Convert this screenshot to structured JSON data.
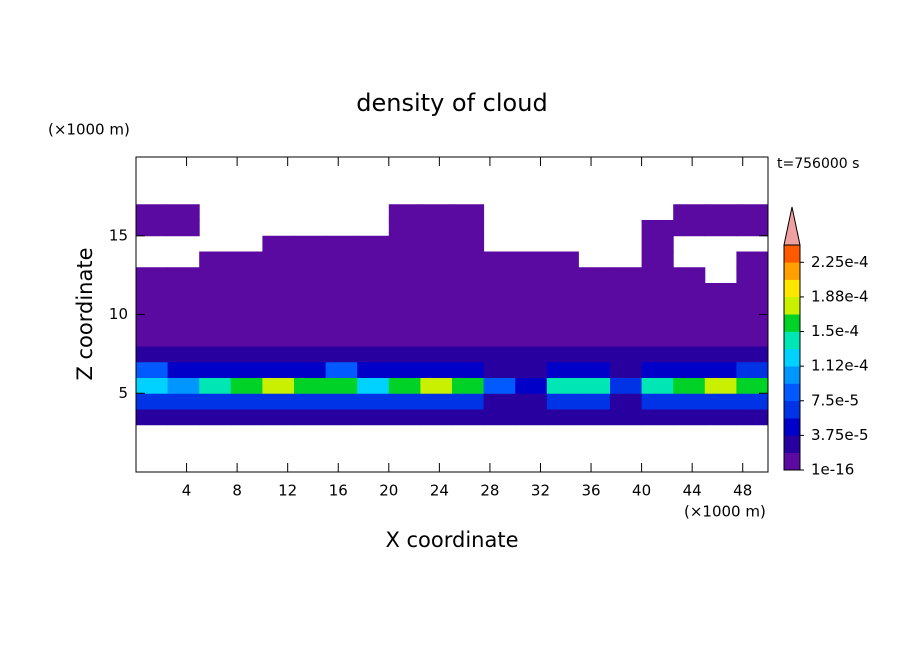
{
  "chart_data": {
    "type": "contour",
    "title": "density of cloud",
    "xlabel": "X coordinate",
    "ylabel": "Z coordinate",
    "xunit": "(×1000 m)",
    "yunit": "(×1000 m)",
    "annotation": "t=756000 s",
    "xlim": [
      0,
      50
    ],
    "ylim": [
      0,
      20
    ],
    "xticks": [
      4,
      8,
      12,
      16,
      20,
      24,
      28,
      32,
      36,
      40,
      44,
      48
    ],
    "yticks": [
      5,
      10,
      15
    ],
    "x": [
      1.25,
      3.75,
      6.25,
      8.75,
      11.25,
      13.75,
      16.25,
      18.75,
      21.25,
      23.75,
      26.25,
      28.75,
      31.25,
      33.75,
      36.25,
      38.75,
      41.25,
      43.75,
      46.25,
      48.75
    ],
    "y": [
      3.5,
      4.5,
      5.5,
      6.5,
      7.5,
      8.5,
      9.5,
      10.5,
      11.5,
      12.5,
      13.5,
      14.5,
      15.5,
      16.5
    ],
    "z": [
      [
        2e-05,
        2e-05,
        2e-05,
        2e-05,
        2e-05,
        2e-05,
        2e-05,
        2e-05,
        2e-05,
        2e-05,
        2e-05,
        2e-05,
        2e-05,
        2e-05,
        2e-05,
        2e-05,
        2e-05,
        2e-05,
        2e-05,
        2e-05
      ],
      [
        7e-05,
        7e-05,
        7e-05,
        7e-05,
        7e-05,
        7e-05,
        7e-05,
        7e-05,
        7e-05,
        7e-05,
        7e-05,
        3e-05,
        3e-05,
        7e-05,
        7e-05,
        3e-05,
        7e-05,
        7e-05,
        7e-05,
        7e-05
      ],
      [
        0.00012,
        0.0001,
        0.00014,
        0.000165,
        0.00017,
        0.000165,
        0.00015,
        0.00012,
        0.00016,
        0.00017,
        0.00015,
        9e-05,
        5e-05,
        0.00014,
        0.000145,
        6e-05,
        0.00014,
        0.000165,
        0.000175,
        0.00016
      ],
      [
        9e-05,
        5e-05,
        4e-05,
        4e-05,
        5e-05,
        5e-05,
        8e-05,
        4e-05,
        4e-05,
        5e-05,
        4e-05,
        3e-05,
        3e-05,
        4e-05,
        4e-05,
        3e-05,
        4e-05,
        5e-05,
        5e-05,
        6e-05
      ],
      [
        3e-05,
        2.5e-05,
        2.5e-05,
        2.5e-05,
        2.5e-05,
        2.5e-05,
        2.5e-05,
        2.5e-05,
        2.5e-05,
        2.5e-05,
        2.5e-05,
        2.5e-05,
        2.5e-05,
        2.5e-05,
        2.5e-05,
        2.5e-05,
        2.5e-05,
        2.5e-05,
        2.5e-05,
        2.5e-05
      ],
      [
        1.5e-05,
        1.5e-05,
        1.5e-05,
        1.5e-05,
        1.5e-05,
        1.5e-05,
        1.5e-05,
        1.5e-05,
        1.5e-05,
        1.5e-05,
        1.5e-05,
        1.5e-05,
        1.5e-05,
        1.5e-05,
        1.5e-05,
        1.5e-05,
        1.5e-05,
        1.5e-05,
        1.5e-05,
        1.5e-05
      ],
      [
        1.2e-05,
        1.2e-05,
        1.2e-05,
        1.2e-05,
        1.2e-05,
        1.2e-05,
        1.2e-05,
        1.2e-05,
        1.2e-05,
        1.2e-05,
        1.2e-05,
        1.2e-05,
        1.2e-05,
        1.2e-05,
        1.2e-05,
        1.2e-05,
        1.2e-05,
        1.2e-05,
        1.2e-05,
        1.2e-05
      ],
      [
        8e-06,
        8e-06,
        8e-06,
        8e-06,
        8e-06,
        8e-06,
        8e-06,
        8e-06,
        8e-06,
        8e-06,
        8e-06,
        8e-06,
        8e-06,
        8e-06,
        8e-06,
        8e-06,
        8e-06,
        8e-06,
        8e-06,
        8e-06
      ],
      [
        4e-06,
        4e-06,
        4e-06,
        4e-06,
        4e-06,
        4e-06,
        4e-06,
        4e-06,
        4e-06,
        4e-06,
        4e-06,
        4e-06,
        4e-06,
        4e-06,
        4e-06,
        4e-06,
        4e-06,
        4e-06,
        4e-06,
        4e-06
      ],
      [
        2e-06,
        2e-06,
        2e-06,
        2e-06,
        2e-06,
        2e-06,
        2e-06,
        2e-06,
        2e-06,
        2e-06,
        2e-06,
        2e-06,
        2e-06,
        2e-06,
        2e-06,
        2e-06,
        2e-06,
        2e-06,
        null,
        2e-06
      ],
      [
        null,
        null,
        1e-06,
        1e-06,
        1e-06,
        1e-06,
        1e-06,
        1e-06,
        1e-06,
        1e-06,
        1e-06,
        1e-06,
        1e-06,
        1e-06,
        null,
        null,
        1e-06,
        null,
        null,
        1e-06
      ],
      [
        null,
        null,
        null,
        null,
        1e-06,
        1e-06,
        1e-06,
        1e-06,
        1e-06,
        1e-06,
        1e-06,
        null,
        null,
        null,
        null,
        null,
        1e-06,
        null,
        null,
        null
      ],
      [
        1e-06,
        1e-06,
        null,
        null,
        null,
        null,
        null,
        null,
        1e-06,
        1e-06,
        1e-06,
        null,
        null,
        null,
        null,
        null,
        1e-06,
        1e-06,
        1e-06,
        1e-06
      ],
      [
        1e-06,
        1e-06,
        null,
        null,
        null,
        null,
        null,
        null,
        1e-06,
        1e-06,
        1e-06,
        null,
        null,
        null,
        null,
        null,
        null,
        1e-06,
        1e-06,
        1e-06
      ]
    ],
    "colorbar": {
      "levels": [
        1e-16,
        1.875e-05,
        3.75e-05,
        5.625e-05,
        7.5e-05,
        9.375e-05,
        0.0001125,
        0.00013125,
        0.00015,
        0.00016875,
        0.0001875,
        0.00020625,
        0.000225,
        0.00024375
      ],
      "colors": [
        "#5a0aa0",
        "#2800a0",
        "#0000c8",
        "#0032e6",
        "#005aff",
        "#0096ff",
        "#00d2ff",
        "#00e6b4",
        "#00d228",
        "#c8f000",
        "#ffe600",
        "#ffa000",
        "#ff5a00",
        "#ff1e1e"
      ],
      "extend_color": "#f0a0a0",
      "ticks": [
        1e-16,
        {
          "value": 3.75e-05,
          "label": "3.75e-5"
        },
        {
          "value": 7.5e-05,
          "label": "7.5e-5"
        },
        {
          "value": 0.0001125,
          "label": "1.12e-4"
        },
        {
          "value": 0.00015,
          "label": "1.5e-4"
        },
        {
          "value": 0.0001875,
          "label": "1.88e-4"
        },
        {
          "value": 0.000225,
          "label": "2.25e-4"
        }
      ]
    }
  }
}
